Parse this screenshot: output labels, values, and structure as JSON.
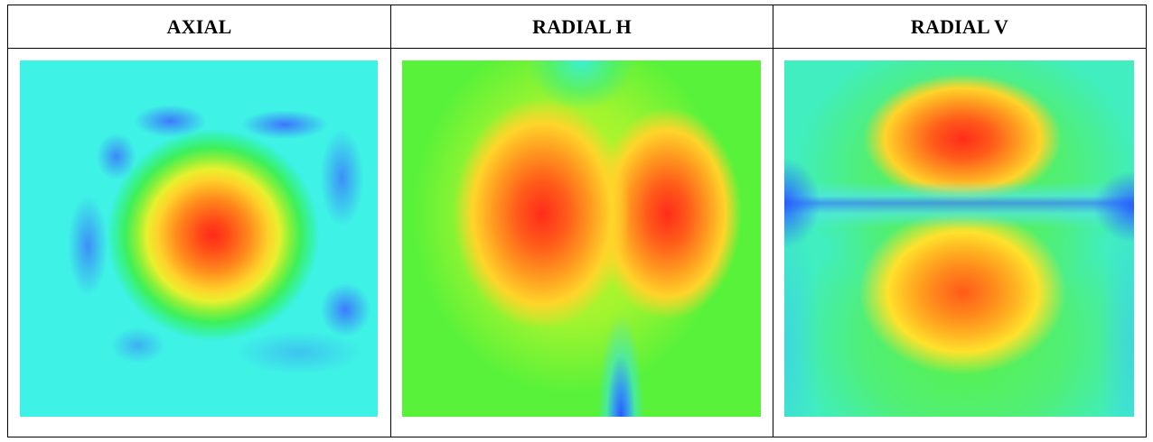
{
  "table": {
    "columns": [
      {
        "header": "AXIAL"
      },
      {
        "header": "RADIAL H"
      },
      {
        "header": "RADIAL V"
      }
    ]
  },
  "colors": {
    "hot": "#ff2a1a",
    "warm": "#ffd22a",
    "mid": "#58f23a",
    "cool": "#3ef2e6",
    "cold": "#3c6eff"
  }
}
